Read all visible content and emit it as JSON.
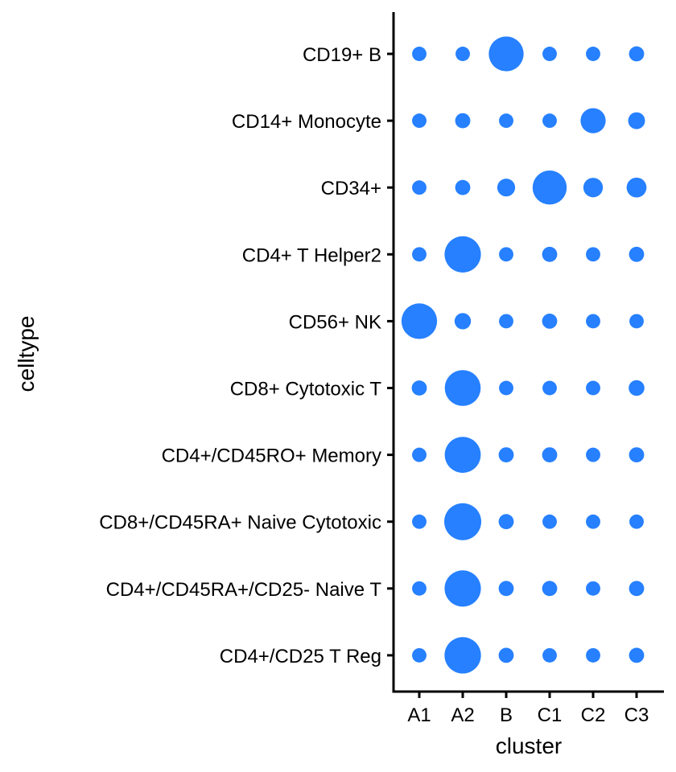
{
  "chart_data": {
    "type": "scatter",
    "subtype": "dot-plot",
    "title": "",
    "xlabel": "cluster",
    "ylabel": "celltype",
    "x_categories": [
      "A1",
      "A2",
      "B",
      "C1",
      "C2",
      "C3"
    ],
    "y_categories": [
      "CD19+ B",
      "CD14+ Monocyte",
      "CD34+",
      "CD4+ T Helper2",
      "CD56+ NK",
      "CD8+ Cytotoxic T",
      "CD4+/CD45RO+ Memory",
      "CD8+/CD45RA+ Naive Cytotoxic",
      "CD4+/CD45RA+/CD25- Naive T",
      "CD4+/CD25 T Reg"
    ],
    "size_values": [
      [
        0.03,
        0.03,
        0.85,
        0.03,
        0.03,
        0.04
      ],
      [
        0.03,
        0.04,
        0.03,
        0.03,
        0.32,
        0.07
      ],
      [
        0.03,
        0.04,
        0.09,
        0.8,
        0.13,
        0.14
      ],
      [
        0.03,
        0.95,
        0.03,
        0.04,
        0.03,
        0.04
      ],
      [
        0.9,
        0.06,
        0.03,
        0.04,
        0.03,
        0.03
      ],
      [
        0.04,
        0.92,
        0.03,
        0.03,
        0.03,
        0.05
      ],
      [
        0.03,
        0.93,
        0.04,
        0.04,
        0.03,
        0.04
      ],
      [
        0.03,
        1.0,
        0.04,
        0.03,
        0.03,
        0.03
      ],
      [
        0.03,
        0.95,
        0.04,
        0.04,
        0.03,
        0.04
      ],
      [
        0.03,
        0.96,
        0.04,
        0.03,
        0.03,
        0.04
      ]
    ],
    "point_color": "#2680FF",
    "grid": false,
    "legend": "none"
  }
}
